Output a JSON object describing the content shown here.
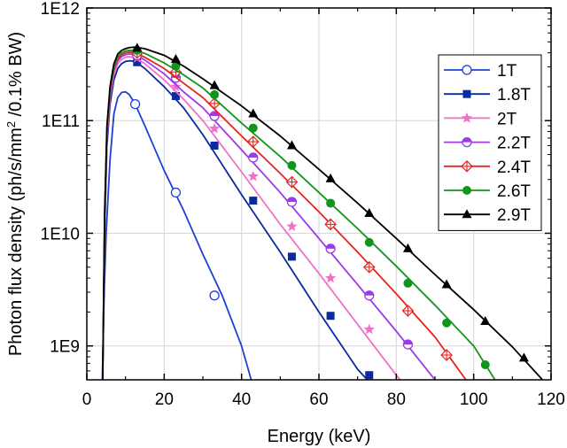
{
  "chart_data": {
    "type": "line",
    "title": "",
    "xlabel": "Energy (keV)",
    "ylabel_prefix": "Photon flux density (ph/s/mm",
    "ylabel_sup": "2",
    "ylabel_suffix": " /0.1% BW)",
    "xlim": [
      0,
      120
    ],
    "ylim": [
      500000000.0,
      1000000000000.0
    ],
    "yscale": "log",
    "grid": true,
    "legend_position": "top-right",
    "x_ticks": [
      0,
      20,
      40,
      60,
      80,
      100,
      120
    ],
    "x_tick_labels": [
      "0",
      "20",
      "40",
      "60",
      "80",
      "100",
      "120"
    ],
    "y_ticks": [
      1000000000.0,
      10000000000.0,
      100000000000.0,
      1000000000000.0
    ],
    "y_tick_labels": [
      "1E9",
      "1E10",
      "1E11",
      "1E12"
    ],
    "series": [
      {
        "name": "1T",
        "color": "#1f3fd6",
        "marker": "circle-open",
        "curve": [
          [
            4.0,
            500000000.0
          ],
          [
            4.5,
            3000000000.0
          ],
          [
            5,
            10000000000.0
          ],
          [
            6,
            45000000000.0
          ],
          [
            7,
            115000000000.0
          ],
          [
            8,
            160000000000.0
          ],
          [
            9,
            178000000000.0
          ],
          [
            10,
            180000000000.0
          ],
          [
            11,
            170000000000.0
          ],
          [
            12.5,
            140000000000.0
          ],
          [
            15,
            90000000000.0
          ],
          [
            20,
            36000000000.0
          ],
          [
            25,
            16000000000.0
          ],
          [
            30,
            6500000000.0
          ],
          [
            35,
            2800000000.0
          ],
          [
            40,
            1000000000.0
          ],
          [
            42.5,
            500000000.0
          ]
        ],
        "markers": [
          [
            12.5,
            140000000000.0
          ],
          [
            23,
            23000000000.0
          ],
          [
            33,
            2800000000.0
          ]
        ]
      },
      {
        "name": "1.8T",
        "color": "#0b2a9e",
        "marker": "square",
        "curve": [
          [
            4.1,
            500000000.0
          ],
          [
            4.6,
            10000000000.0
          ],
          [
            5.2,
            60000000000.0
          ],
          [
            6,
            140000000000.0
          ],
          [
            7,
            230000000000.0
          ],
          [
            8,
            290000000000.0
          ],
          [
            9,
            320000000000.0
          ],
          [
            10,
            335000000000.0
          ],
          [
            11,
            340000000000.0
          ],
          [
            12.5,
            335000000000.0
          ],
          [
            15,
            290000000000.0
          ],
          [
            20,
            200000000000.0
          ],
          [
            25,
            130000000000.0
          ],
          [
            30,
            75000000000.0
          ],
          [
            40,
            22000000000.0
          ],
          [
            50,
            6800000000.0
          ],
          [
            60,
            2000000000.0
          ],
          [
            70,
            620000000.0
          ],
          [
            72.5,
            500000000.0
          ]
        ],
        "markers": [
          [
            13,
            330000000000.0
          ],
          [
            23,
            165000000000.0
          ],
          [
            33,
            60000000000.0
          ],
          [
            43,
            19500000000.0
          ],
          [
            53,
            6200000000.0
          ],
          [
            63,
            1850000000.0
          ],
          [
            73,
            550000000.0
          ]
        ]
      },
      {
        "name": "2T",
        "color": "#f070c8",
        "marker": "star",
        "curve": [
          [
            4.1,
            500000000.0
          ],
          [
            4.6,
            11000000000.0
          ],
          [
            5.2,
            70000000000.0
          ],
          [
            6,
            160000000000.0
          ],
          [
            7,
            260000000000.0
          ],
          [
            8,
            320000000000.0
          ],
          [
            9,
            350000000000.0
          ],
          [
            10,
            365000000000.0
          ],
          [
            11,
            370000000000.0
          ],
          [
            12.5,
            360000000000.0
          ],
          [
            15,
            320000000000.0
          ],
          [
            20,
            230000000000.0
          ],
          [
            25,
            155000000000.0
          ],
          [
            30,
            100000000000.0
          ],
          [
            40,
            35000000000.0
          ],
          [
            50,
            12000000000.0
          ],
          [
            60,
            4400000000.0
          ],
          [
            70,
            1550000000.0
          ],
          [
            80,
            550000000.0
          ],
          [
            81,
            500000000.0
          ]
        ],
        "markers": [
          [
            13,
            360000000000.0
          ],
          [
            23,
            200000000000.0
          ],
          [
            33,
            85000000000.0
          ],
          [
            43,
            32000000000.0
          ],
          [
            53,
            11500000000.0
          ],
          [
            63,
            4000000000.0
          ],
          [
            73,
            1400000000.0
          ]
        ]
      },
      {
        "name": "2.2T",
        "color": "#9a3ae8",
        "marker": "circle-half",
        "curve": [
          [
            4.1,
            500000000.0
          ],
          [
            4.6,
            12000000000.0
          ],
          [
            5.2,
            75000000000.0
          ],
          [
            6,
            170000000000.0
          ],
          [
            7,
            280000000000.0
          ],
          [
            8,
            340000000000.0
          ],
          [
            9,
            370000000000.0
          ],
          [
            10,
            385000000000.0
          ],
          [
            11,
            390000000000.0
          ],
          [
            12.5,
            385000000000.0
          ],
          [
            15,
            345000000000.0
          ],
          [
            20,
            260000000000.0
          ],
          [
            25,
            180000000000.0
          ],
          [
            30,
            130000000000.0
          ],
          [
            40,
            55000000000.0
          ],
          [
            50,
            23000000000.0
          ],
          [
            60,
            9000000000.0
          ],
          [
            70,
            3500000000.0
          ],
          [
            80,
            1350000000.0
          ],
          [
            90,
            500000000.0
          ]
        ],
        "markers": [
          [
            13,
            380000000000.0
          ],
          [
            23,
            240000000000.0
          ],
          [
            33,
            110000000000.0
          ],
          [
            43,
            47000000000.0
          ],
          [
            53,
            19000000000.0
          ],
          [
            63,
            7300000000.0
          ],
          [
            73,
            2800000000.0
          ],
          [
            83,
            1030000000.0
          ]
        ]
      },
      {
        "name": "2.4T",
        "color": "#e8231f",
        "marker": "diamond-cross",
        "curve": [
          [
            4.1,
            500000000.0
          ],
          [
            4.6,
            13000000000.0
          ],
          [
            5.2,
            80000000000.0
          ],
          [
            6,
            180000000000.0
          ],
          [
            7,
            290000000000.0
          ],
          [
            8,
            355000000000.0
          ],
          [
            9,
            385000000000.0
          ],
          [
            10,
            400000000000.0
          ],
          [
            11,
            405000000000.0
          ],
          [
            12.5,
            400000000000.0
          ],
          [
            15,
            365000000000.0
          ],
          [
            20,
            290000000000.0
          ],
          [
            25,
            215000000000.0
          ],
          [
            30,
            160000000000.0
          ],
          [
            40,
            73000000000.0
          ],
          [
            50,
            34000000000.0
          ],
          [
            60,
            15500000000.0
          ],
          [
            70,
            6800000000.0
          ],
          [
            80,
            2900000000.0
          ],
          [
            90,
            1200000000.0
          ],
          [
            98,
            500000000.0
          ]
        ],
        "markers": [
          [
            13,
            400000000000.0
          ],
          [
            23,
            270000000000.0
          ],
          [
            33,
            142000000000.0
          ],
          [
            43,
            65000000000.0
          ],
          [
            53,
            28500000000.0
          ],
          [
            63,
            12000000000.0
          ],
          [
            73,
            5000000000.0
          ],
          [
            83,
            2050000000.0
          ],
          [
            93,
            830000000.0
          ]
        ]
      },
      {
        "name": "2.6T",
        "color": "#12951c",
        "marker": "circle-filled",
        "curve": [
          [
            4.1,
            500000000.0
          ],
          [
            4.6,
            14000000000.0
          ],
          [
            5.2,
            85000000000.0
          ],
          [
            6,
            190000000000.0
          ],
          [
            7,
            305000000000.0
          ],
          [
            8,
            370000000000.0
          ],
          [
            9,
            400000000000.0
          ],
          [
            10,
            415000000000.0
          ],
          [
            11,
            420000000000.0
          ],
          [
            12.5,
            420000000000.0
          ],
          [
            15,
            395000000000.0
          ],
          [
            20,
            325000000000.0
          ],
          [
            25,
            255000000000.0
          ],
          [
            30,
            195000000000.0
          ],
          [
            40,
            95000000000.0
          ],
          [
            50,
            48000000000.0
          ],
          [
            60,
            23000000000.0
          ],
          [
            70,
            11000000000.0
          ],
          [
            80,
            5100000000.0
          ],
          [
            90,
            2300000000.0
          ],
          [
            100,
            1000000000.0
          ],
          [
            105.5,
            500000000.0
          ]
        ],
        "markers": [
          [
            13,
            420000000000.0
          ],
          [
            23,
            305000000000.0
          ],
          [
            33,
            170000000000.0
          ],
          [
            43,
            86000000000.0
          ],
          [
            53,
            40000000000.0
          ],
          [
            63,
            18500000000.0
          ],
          [
            73,
            8300000000.0
          ],
          [
            83,
            3600000000.0
          ],
          [
            93,
            1600000000.0
          ],
          [
            103,
            680000000.0
          ]
        ]
      },
      {
        "name": "2.9T",
        "color": "#000000",
        "marker": "triangle",
        "curve": [
          [
            4.1,
            500000000.0
          ],
          [
            4.6,
            15000000000.0
          ],
          [
            5.2,
            90000000000.0
          ],
          [
            6,
            200000000000.0
          ],
          [
            7,
            320000000000.0
          ],
          [
            8,
            390000000000.0
          ],
          [
            9,
            420000000000.0
          ],
          [
            10,
            435000000000.0
          ],
          [
            11,
            445000000000.0
          ],
          [
            12.5,
            450000000000.0
          ],
          [
            15,
            435000000000.0
          ],
          [
            20,
            380000000000.0
          ],
          [
            25,
            305000000000.0
          ],
          [
            30,
            235000000000.0
          ],
          [
            40,
            135000000000.0
          ],
          [
            50,
            73000000000.0
          ],
          [
            60,
            37000000000.0
          ],
          [
            70,
            18500000000.0
          ],
          [
            80,
            9000000000.0
          ],
          [
            90,
            4300000000.0
          ],
          [
            100,
            2100000000.0
          ],
          [
            110,
            980000000.0
          ],
          [
            117.8,
            500000000.0
          ]
        ],
        "markers": [
          [
            13,
            440000000000.0
          ],
          [
            23,
            350000000000.0
          ],
          [
            33,
            205000000000.0
          ],
          [
            43,
            115000000000.0
          ],
          [
            53,
            60000000000.0
          ],
          [
            63,
            30500000000.0
          ],
          [
            73,
            15000000000.0
          ],
          [
            83,
            7300000000.0
          ],
          [
            93,
            3500000000.0
          ],
          [
            103,
            1650000000.0
          ],
          [
            113,
            780000000.0
          ]
        ]
      }
    ]
  }
}
